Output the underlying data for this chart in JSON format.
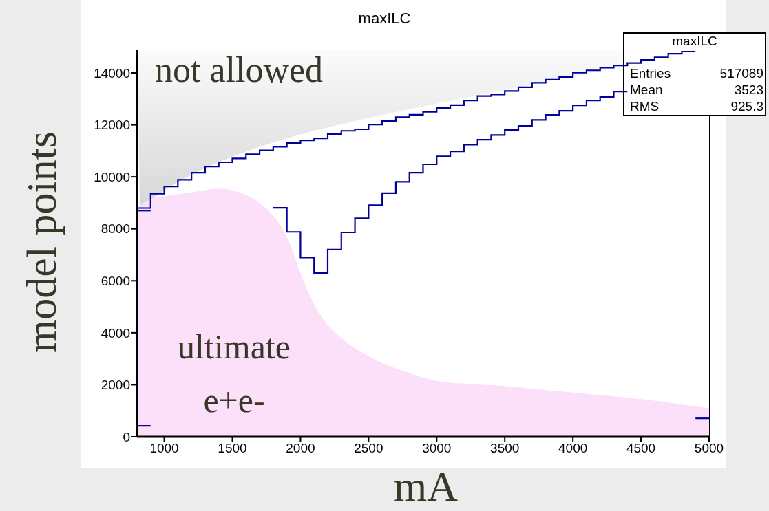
{
  "chart_data": {
    "type": "step",
    "title": "maxILC",
    "xlabel": "mA",
    "ylabel": "model points",
    "series": [
      {
        "type": "area",
        "color": "#fce0fa",
        "x": [
          800,
          900,
          1000,
          1200,
          1400,
          1600,
          1700,
          1800,
          1900,
          2000,
          2100,
          2200,
          2300,
          2500,
          2800,
          3000,
          3500,
          4000,
          4500,
          5000
        ],
        "values": [
          8800,
          9150,
          9250,
          9400,
          9550,
          9300,
          9000,
          8500,
          7700,
          6300,
          5100,
          4300,
          3800,
          3100,
          2450,
          2150,
          1950,
          1700,
          1450,
          1100
        ]
      },
      {
        "color": "#000099",
        "x": [
          800,
          900,
          1000,
          1100,
          1200,
          1300,
          1400,
          1500,
          1600,
          1700,
          1800,
          1900,
          2000,
          2100,
          2200,
          2300,
          2400,
          2500,
          2600,
          2700,
          2800,
          2900,
          3000,
          3100,
          3200,
          3300,
          3400,
          3500,
          3600,
          3700,
          3800,
          3900,
          4000,
          4100,
          4200,
          4300,
          4400,
          4500,
          4600,
          4700,
          4800,
          4900
        ],
        "values": [
          8800,
          9350,
          9630,
          9890,
          10160,
          10400,
          10560,
          10710,
          10870,
          11020,
          11160,
          11300,
          11400,
          11480,
          11640,
          11770,
          11830,
          12010,
          12150,
          12300,
          12390,
          12500,
          12650,
          12760,
          12940,
          13110,
          13170,
          13300,
          13450,
          13620,
          13740,
          13840,
          14010,
          14100,
          14200,
          14290,
          14380,
          14500,
          14600,
          14740,
          14820,
          14820
        ]
      },
      {
        "color": "#000099",
        "x": [
          800,
          900
        ],
        "values": [
          8700,
          8700
        ]
      },
      {
        "color": "#000099",
        "x": [
          1800,
          1900,
          2000,
          2100,
          2200,
          2300,
          2400,
          2500,
          2600,
          2700,
          2800,
          2900,
          3000,
          3100,
          3200,
          3300,
          3400,
          3500,
          3600,
          3700,
          3800,
          3900,
          4000,
          4100,
          4200,
          4300,
          4400
        ],
        "values": [
          8810,
          7880,
          6900,
          6300,
          7200,
          7860,
          8410,
          8910,
          9370,
          9810,
          10160,
          10480,
          10790,
          10980,
          11240,
          11430,
          11610,
          11800,
          11960,
          12190,
          12380,
          12540,
          12750,
          12940,
          13070,
          13280,
          13280
        ]
      },
      {
        "color": "#000099",
        "x": [
          800,
          900
        ],
        "values": [
          420,
          420
        ]
      },
      {
        "color": "#000099",
        "x": [
          4900,
          5000
        ],
        "values": [
          710,
          710
        ]
      }
    ],
    "xlim": [
      800,
      5000
    ],
    "xticks": [
      1000,
      1500,
      2000,
      2500,
      3000,
      3500,
      4000,
      4500,
      5000
    ],
    "ylim": [
      0,
      14900
    ],
    "yticks": [
      0,
      2000,
      4000,
      6000,
      8000,
      10000,
      12000,
      14000
    ],
    "annotations": [
      "not allowed",
      "ultimate e+e-",
      "maxILC",
      "Entries",
      "517089",
      "Mean",
      "3523",
      "RMS",
      "925.3"
    ]
  }
}
